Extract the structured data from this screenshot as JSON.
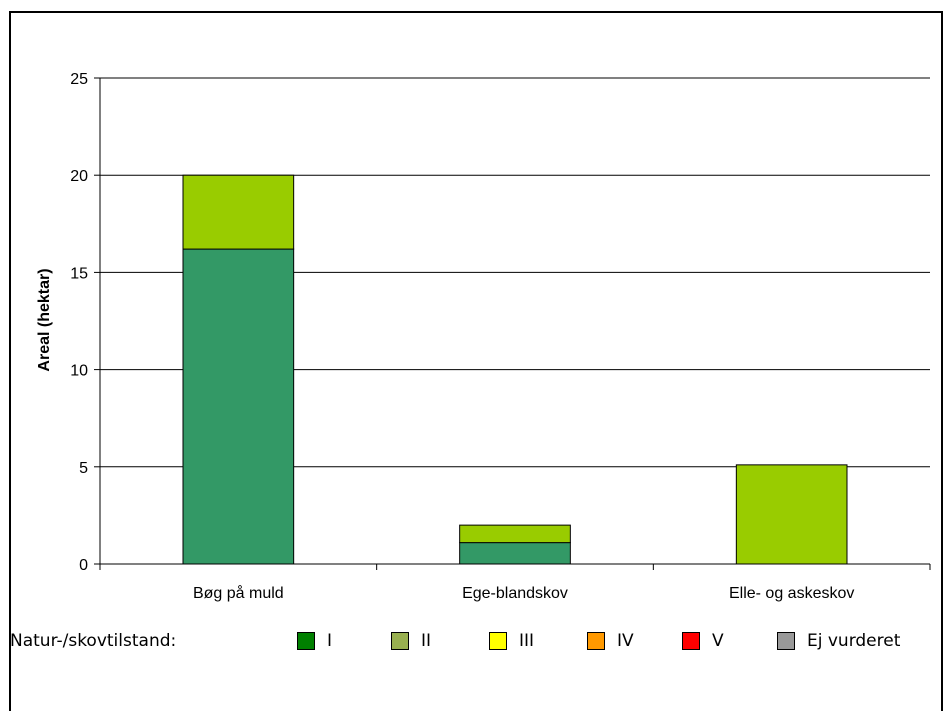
{
  "chart_data": {
    "type": "bar",
    "stacked": true,
    "categories": [
      "Bøg på muld",
      "Ege-blandskov",
      "Elle- og askeskov"
    ],
    "series": [
      {
        "name": "I",
        "color": "#339966",
        "values": [
          16.2,
          1.1,
          0
        ]
      },
      {
        "name": "II",
        "color": "#99cc00",
        "values": [
          3.8,
          0.9,
          5.1
        ]
      }
    ],
    "title": "",
    "xlabel": "",
    "ylabel": "Areal (hektar)",
    "ylim": [
      0,
      25
    ],
    "yticks": [
      0,
      5,
      10,
      15,
      20,
      25
    ],
    "grid": true
  },
  "legend": {
    "title": "Natur-/skovtilstand:",
    "items": [
      {
        "label": "I",
        "color": "#008000"
      },
      {
        "label": "II",
        "color": "#99b050"
      },
      {
        "label": "III",
        "color": "#ffff00"
      },
      {
        "label": "IV",
        "color": "#ff9900"
      },
      {
        "label": "V",
        "color": "#ff0000"
      },
      {
        "label": "Ej vurderet",
        "color": "#999999"
      }
    ]
  }
}
